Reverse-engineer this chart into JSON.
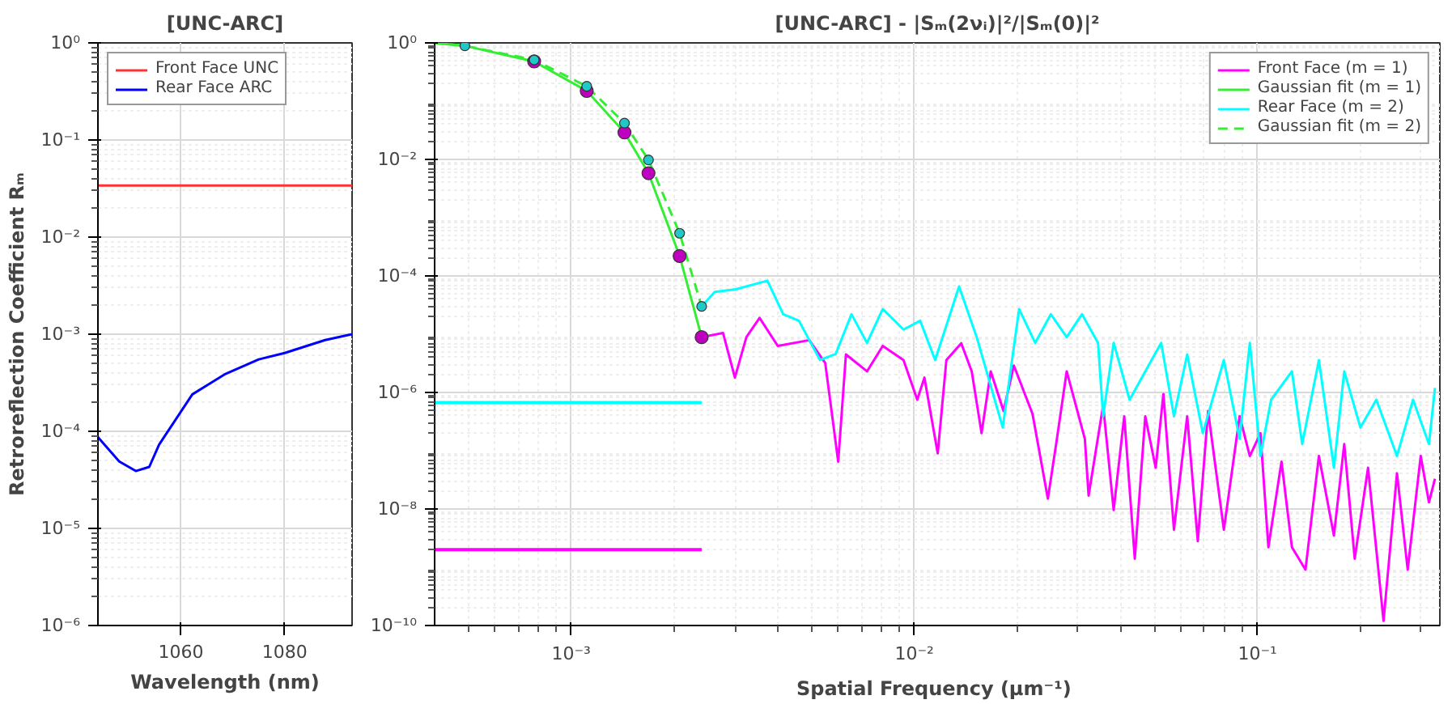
{
  "chart_data": [
    {
      "type": "line",
      "title": "[UNC-ARC]",
      "xlabel": "Wavelength (nm)",
      "ylabel": "Retroreflection Coefficient Rₘ",
      "log": "y",
      "grid": true,
      "legend": "top left",
      "xlim": [
        1044,
        1093
      ],
      "xticks": [
        1060,
        1080
      ],
      "ylim": [
        1e-06,
        1
      ],
      "yticks": [
        {
          "value": 1,
          "label": "10⁰"
        },
        {
          "value": 0.1,
          "label": "10⁻¹"
        },
        {
          "value": 0.01,
          "label": "10⁻²"
        },
        {
          "value": 0.001,
          "label": "10⁻³"
        },
        {
          "value": 0.0001,
          "label": "10⁻⁴"
        },
        {
          "value": 1e-05,
          "label": "10⁻⁵"
        },
        {
          "value": 1e-06,
          "label": "10⁻⁶"
        }
      ],
      "series": [
        {
          "name": "Front Face UNC",
          "color": "#ff3333",
          "x": [
            1044,
            1093
          ],
          "values": [
            0.034,
            0.034
          ]
        },
        {
          "name": "Rear Face ARC",
          "color": "#0000ff",
          "x": [
            1044,
            1048.1,
            1051.3,
            1053.9,
            1055.8,
            1062.2,
            1068.6,
            1075,
            1080,
            1087.8,
            1093
          ],
          "values": [
            8.7e-05,
            4.9e-05,
            3.9e-05,
            4.3e-05,
            7.3e-05,
            0.00024,
            0.00039,
            0.00055,
            0.00064,
            0.00087,
            0.001
          ]
        }
      ]
    },
    {
      "type": "line",
      "title": "[UNC-ARC] - |Sₘ(2νᵢ)|²/|Sₘ(0)|²",
      "xlabel": "Spatial Frequency  (μm⁻¹)",
      "log": "xy",
      "grid": true,
      "legend": "top right",
      "xlim": [
        0.0004,
        0.34
      ],
      "xticks": [
        {
          "value": 0.001,
          "label": "10⁻³"
        },
        {
          "value": 0.01,
          "label": "10⁻²"
        },
        {
          "value": 0.1,
          "label": "10⁻¹"
        }
      ],
      "ylim": [
        1e-10,
        1
      ],
      "yticks": [
        {
          "value": 1,
          "label": "10⁰"
        },
        {
          "value": 0.01,
          "label": "10⁻²"
        },
        {
          "value": 0.0001,
          "label": "10⁻⁴"
        },
        {
          "value": 1e-06,
          "label": "10⁻⁶"
        },
        {
          "value": 1e-08,
          "label": "10⁻⁸"
        },
        {
          "value": 1e-10,
          "label": "10⁻¹⁰"
        }
      ],
      "series": [
        {
          "name": "Front Face (m = 1)",
          "color": "#ff00ff",
          "x": [
            0.0024,
            0.00277,
            0.003,
            0.00324,
            0.00354,
            0.004,
            0.00494,
            0.0055,
            0.006,
            0.00632,
            0.00728,
            0.00809,
            0.0093,
            0.0102,
            0.0107,
            0.0117,
            0.0124,
            0.0137,
            0.0147,
            0.0157,
            0.0167,
            0.0182,
            0.0195,
            0.0221,
            0.0245,
            0.0259,
            0.0278,
            0.0314,
            0.0322,
            0.0355,
            0.0381,
            0.0409,
            0.0439,
            0.0471,
            0.0505,
            0.0532,
            0.0571,
            0.0624,
            0.067,
            0.0718,
            0.0798,
            0.0887,
            0.095,
            0.102,
            0.1076,
            0.1175,
            0.126,
            0.138,
            0.151,
            0.167,
            0.179,
            0.192,
            0.21,
            0.233,
            0.255,
            0.274,
            0.299,
            0.316,
            0.329
          ],
          "values": [
            8.9e-06,
            1.05e-05,
            1.8e-06,
            8.9e-06,
            1.9e-05,
            6.3e-06,
            7.9e-06,
            3.2e-06,
            6.5e-08,
            4.5e-06,
            2.3e-06,
            6.3e-06,
            3.6e-06,
            7.5e-07,
            1.8e-06,
            9e-08,
            3.6e-06,
            7e-06,
            2.3e-06,
            2e-07,
            2.3e-06,
            4.8e-07,
            2.9e-06,
            4.3e-07,
            1.5e-08,
            1.3e-07,
            2.3e-06,
            1.6e-07,
            1.7e-08,
            6e-07,
            9.6e-09,
            3.9e-07,
            1.4e-09,
            3.9e-07,
            5.1e-08,
            9.4e-07,
            4.4e-09,
            3.9e-07,
            2.8e-09,
            4.8e-07,
            4.4e-09,
            3.9e-07,
            8.1e-08,
            2e-07,
            2.2e-09,
            6.5e-08,
            2.2e-09,
            9.1e-10,
            8.1e-08,
            3.5e-09,
            1.3e-07,
            1.4e-09,
            5.1e-08,
            1.2e-10,
            4.1e-08,
            9.1e-10,
            8.1e-08,
            1.3e-08,
            3.3e-08
          ]
        },
        {
          "name": "Gaussian fit (m = 1)",
          "color": "#33ee33",
          "x": [
            0.0004,
            0.00049,
            0.00078,
            0.00111,
            0.00143,
            0.00168,
            0.00207,
            0.0024
          ],
          "values": [
            1.0,
            0.89,
            0.48,
            0.15,
            0.029,
            0.0058,
            0.00022,
            8.9e-06
          ]
        },
        {
          "name": "Rear Face (m = 2)",
          "color": "#00ffff",
          "x": [
            0.0024,
            0.00262,
            0.00302,
            0.00373,
            0.00415,
            0.00461,
            0.00531,
            0.0059,
            0.00656,
            0.00728,
            0.00809,
            0.0093,
            0.0104,
            0.0115,
            0.0135,
            0.0152,
            0.0181,
            0.0202,
            0.0225,
            0.025,
            0.0278,
            0.0308,
            0.0343,
            0.0355,
            0.0381,
            0.0424,
            0.0471,
            0.0524,
            0.0571,
            0.0624,
            0.0693,
            0.0798,
            0.0887,
            0.095,
            0.102,
            0.1096,
            0.126,
            0.135,
            0.151,
            0.167,
            0.179,
            0.1995,
            0.222,
            0.255,
            0.284,
            0.316,
            0.329
          ],
          "values": [
            3e-05,
            5.3e-05,
            5.9e-05,
            8.3e-05,
            2.2e-05,
            1.7e-05,
            3.6e-06,
            4.6e-06,
            2.2e-05,
            7.1e-06,
            2.7e-05,
            1.2e-05,
            1.7e-05,
            3.6e-06,
            6.6e-05,
            8.9e-06,
            2.5e-07,
            2.7e-05,
            7.1e-06,
            2.2e-05,
            8.9e-06,
            2.2e-05,
            7.1e-06,
            3.9e-07,
            7.1e-06,
            7.5e-07,
            2.3e-06,
            7.1e-06,
            3.9e-07,
            4.5e-06,
            2e-07,
            3.6e-06,
            1.6e-07,
            7.1e-06,
            8.1e-08,
            7.5e-07,
            2.3e-06,
            1.3e-07,
            3.6e-06,
            5.1e-08,
            2.3e-06,
            2.5e-07,
            7.5e-07,
            8.1e-08,
            7.5e-07,
            1.3e-07,
            1.2e-06
          ]
        },
        {
          "name": "Gaussian fit (m = 2)",
          "color": "#33ee33",
          "line_style": "dashed",
          "x": [
            0.0004,
            0.00049,
            0.00078,
            0.00111,
            0.00143,
            0.00168,
            0.00207,
            0.0024
          ],
          "values": [
            1.0,
            0.89,
            0.51,
            0.18,
            0.042,
            0.0098,
            0.00054,
            3e-05
          ]
        },
        {
          "type": "scatter",
          "marker": "circle",
          "color": "#c000c0",
          "x": [
            0.00078,
            0.00111,
            0.00143,
            0.00168,
            0.00207,
            0.0024
          ],
          "values": [
            0.48,
            0.15,
            0.029,
            0.0058,
            0.00022,
            8.9e-06
          ]
        },
        {
          "type": "scatter",
          "marker": "circle",
          "color": "#20c8c8",
          "x": [
            0.00049,
            0.00078,
            0.00111,
            0.00143,
            0.00168,
            0.00207,
            0.0024
          ],
          "values": [
            0.89,
            0.51,
            0.18,
            0.042,
            0.0098,
            0.00054,
            3e-05
          ]
        },
        {
          "color": "#00ffff",
          "x": [
            0.0004,
            0.0024
          ],
          "values": [
            6.7e-07,
            6.7e-07
          ]
        },
        {
          "color": "#ff00ff",
          "x": [
            0.0004,
            0.0024
          ],
          "values": [
            2e-09,
            2e-09
          ]
        }
      ]
    }
  ]
}
